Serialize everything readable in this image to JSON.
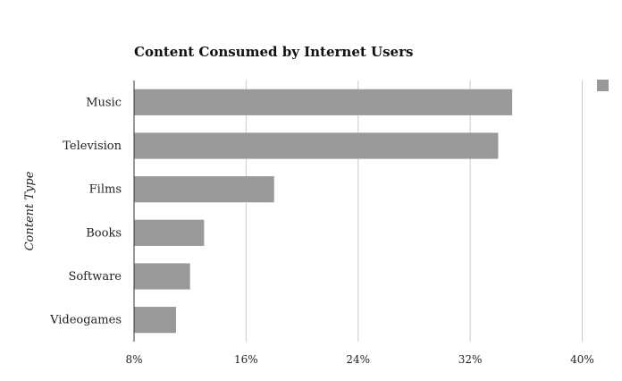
{
  "chart_data": {
    "type": "bar",
    "orientation": "horizontal",
    "title": "Content Consumed by Internet Users",
    "ylabel": "Content Type",
    "xlabel": "",
    "categories": [
      "Music",
      "Television",
      "Films",
      "Books",
      "Software",
      "Videogames"
    ],
    "series": [
      {
        "values": [
          35,
          34,
          18,
          13,
          12,
          11
        ]
      }
    ],
    "xlim": [
      8,
      41.5
    ],
    "xticks": [
      8,
      16,
      24,
      32,
      40
    ],
    "xtick_labels": [
      "8%",
      "16%",
      "24%",
      "32%",
      "40%"
    ],
    "grid": true,
    "legend": "top-right",
    "colors": {
      "bar": "#999999",
      "grid": "#cccccc",
      "axis": "#333333"
    }
  }
}
